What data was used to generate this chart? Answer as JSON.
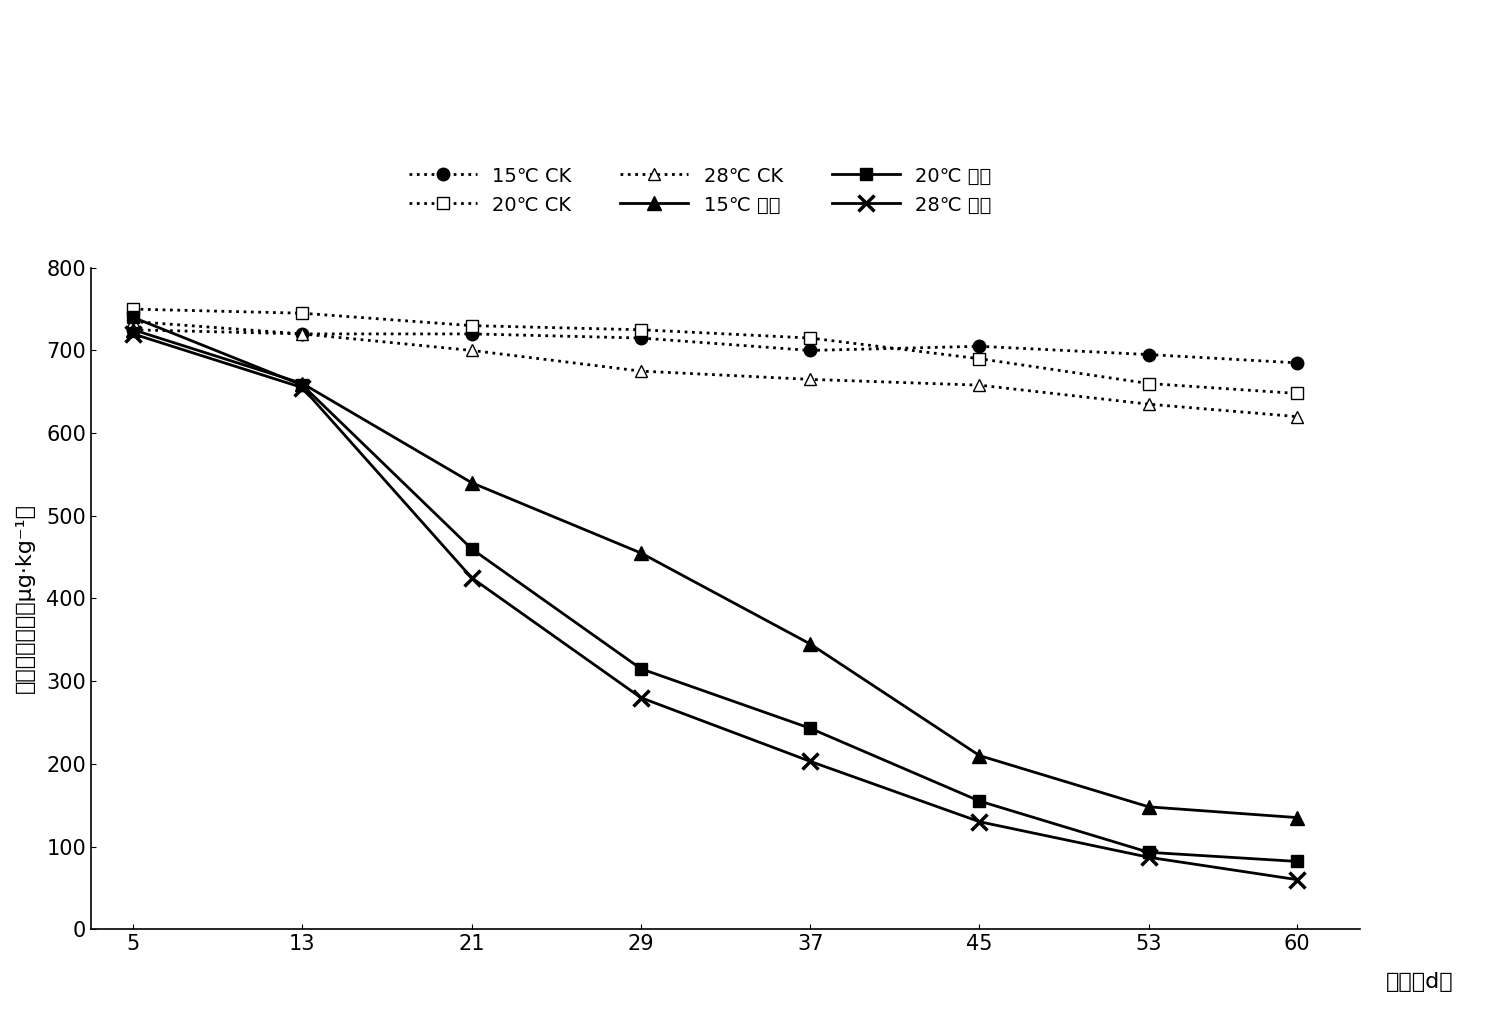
{
  "x": [
    5,
    13,
    21,
    29,
    37,
    45,
    53,
    60
  ],
  "ck_15": [
    725,
    720,
    720,
    715,
    700,
    705,
    695,
    685
  ],
  "ck_20": [
    750,
    745,
    730,
    725,
    715,
    690,
    660,
    648
  ],
  "ck_28": [
    735,
    720,
    700,
    675,
    665,
    658,
    635,
    620
  ],
  "treat_15": [
    725,
    660,
    540,
    455,
    345,
    210,
    148,
    135
  ],
  "treat_20": [
    740,
    658,
    460,
    315,
    243,
    155,
    93,
    82
  ],
  "treat_28": [
    720,
    655,
    425,
    280,
    203,
    130,
    87,
    60
  ],
  "ylabel": "异噪草酮浓度（μg·kg⁻¹）",
  "xlabel": "时间（d）",
  "ylim": [
    0,
    800
  ],
  "yticks": [
    0,
    100,
    200,
    300,
    400,
    500,
    600,
    700,
    800
  ],
  "legend_ck15": "15℃ CK",
  "legend_ck20": "20℃ CK",
  "legend_ck28": "28℃ CK",
  "legend_treat15": "15℃ 处理",
  "legend_treat20": "20℃ 处理",
  "legend_treat28": "28℃ 处理",
  "color": "#000000",
  "bg_color": "#ffffff"
}
